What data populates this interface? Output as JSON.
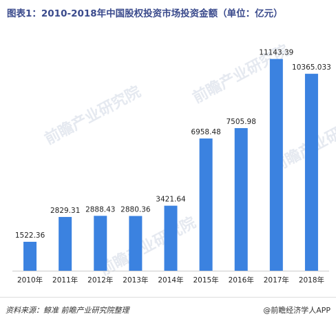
{
  "header": {
    "title": "图表1：2010-2018年中国股权投资市场投资金额（单位：亿元）"
  },
  "footer": {
    "source": "资料来源：鲸准  前瞻产业研究院整理",
    "brand": "@前瞻经济学人APP"
  },
  "watermark": {
    "text": "前瞻产业研究院"
  },
  "colors": {
    "bar": "#3b82e0",
    "title": "#3a4a8c"
  },
  "chart_data": {
    "type": "bar",
    "categories": [
      "2010年",
      "2011年",
      "2012年",
      "2013年",
      "2014年",
      "2015年",
      "2016年",
      "2017年",
      "2018年"
    ],
    "values": [
      1522.36,
      2829.31,
      2888.43,
      2880.36,
      3421.64,
      6958.48,
      7505.98,
      11143.39,
      10365.033
    ],
    "data_labels": [
      "1522.36",
      "2829.31",
      "2888.43",
      "2880.36",
      "3421.64",
      "6958.48",
      "7505.98",
      "11143.39",
      "10365.033"
    ],
    "title": "图表1：2010-2018年中国股权投资市场投资金额（单位：亿元）",
    "xlabel": "",
    "ylabel": "",
    "ylim": [
      0,
      12000
    ],
    "grid": false,
    "legend": "none"
  }
}
